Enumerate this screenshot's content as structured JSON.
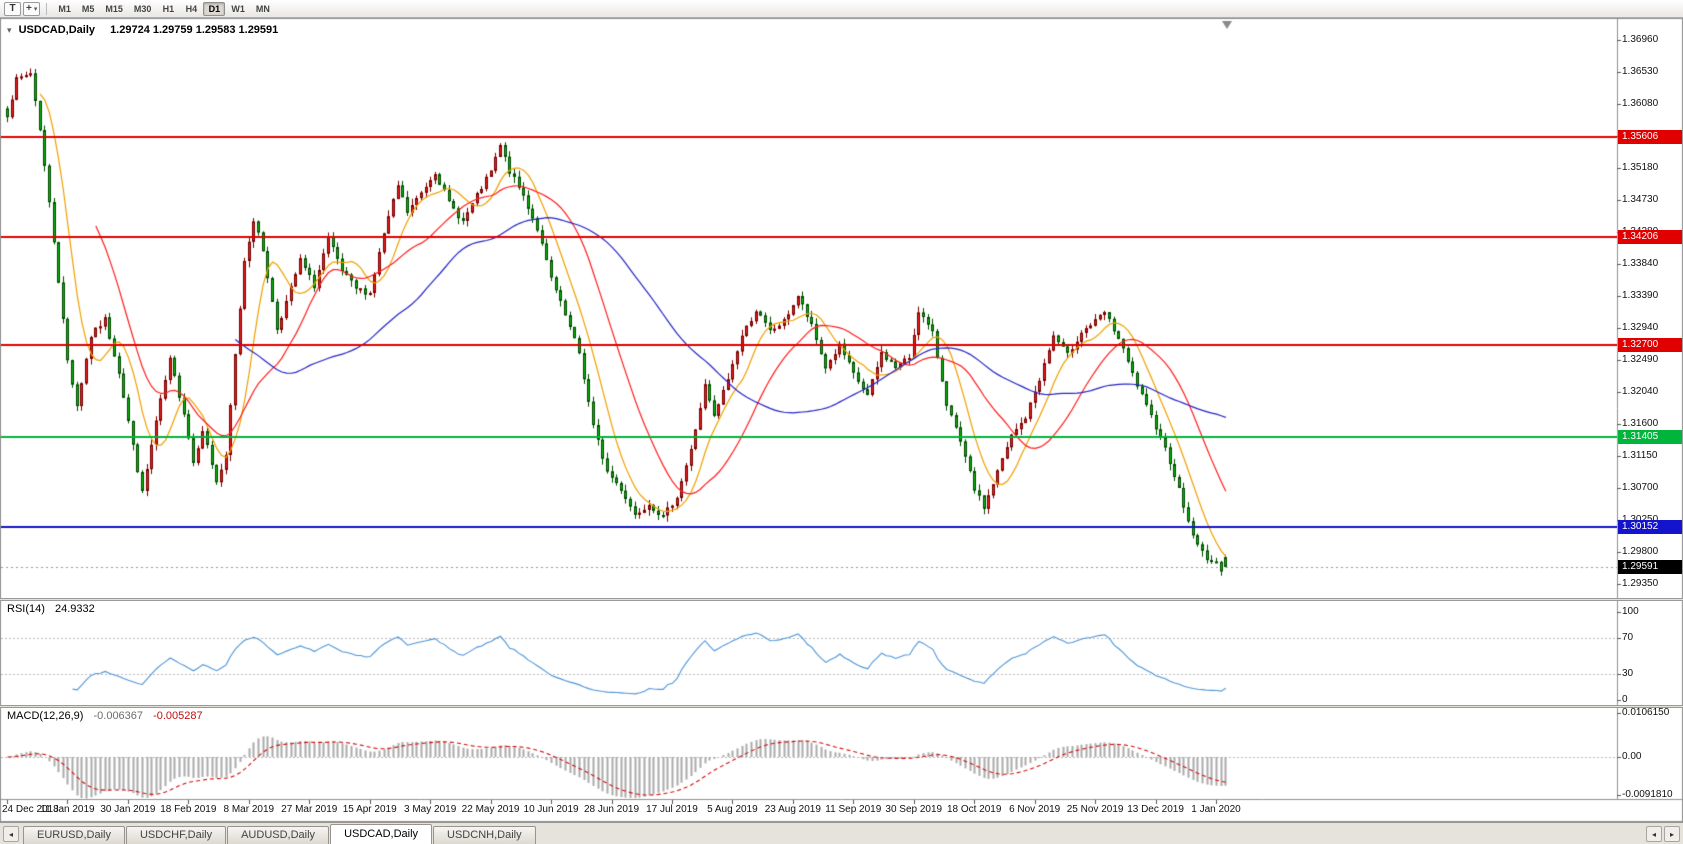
{
  "toolbar": {
    "text_tool_label": "T",
    "timeframes": [
      "M1",
      "M5",
      "M15",
      "M30",
      "H1",
      "H4",
      "D1",
      "W1",
      "MN"
    ],
    "active_timeframe": "D1"
  },
  "icons": {
    "collapse_arrow": "▾",
    "crosshair_tool": "+",
    "dropdown_caret": "▾",
    "tab_scroll_left": "◂",
    "tab_scroll_right": "▸"
  },
  "window": {
    "title_symbol": "USDCAD,Daily",
    "title_ohlc": "1.29724 1.29759 1.29583 1.29591"
  },
  "chart_data": {
    "type": "candlestick",
    "symbol": "USDCAD",
    "period": "Daily",
    "current_bar": {
      "open": 1.29724,
      "high": 1.29759,
      "low": 1.29583,
      "close": 1.29591
    },
    "bars_total": 263,
    "bars_per_date_label": 13,
    "price_axis_labels": [
      "1.36960",
      "1.36530",
      "1.36080",
      "1.35630",
      "1.35180",
      "1.34730",
      "1.34280",
      "1.33840",
      "1.33390",
      "1.32940",
      "1.32490",
      "1.32040",
      "1.31600",
      "1.31150",
      "1.30700",
      "1.30250",
      "1.29800",
      "1.29350"
    ],
    "date_axis_labels": [
      "24 Dec 2018",
      "11 Jan 2019",
      "30 Jan 2019",
      "18 Feb 2019",
      "8 Mar 2019",
      "27 Mar 2019",
      "15 Apr 2019",
      "3 May 2019",
      "22 May 2019",
      "10 Jun 2019",
      "28 Jun 2019",
      "17 Jul 2019",
      "5 Aug 2019",
      "23 Aug 2019",
      "11 Sep 2019",
      "30 Sep 2019",
      "18 Oct 2019",
      "6 Nov 2019",
      "25 Nov 2019",
      "13 Dec 2019",
      "1 Jan 2020"
    ],
    "horizontal_lines": [
      {
        "price": 1.35606,
        "label": "1.35606",
        "color": "#e00000",
        "role": "resistance"
      },
      {
        "price": 1.34206,
        "label": "1.34206",
        "color": "#e00000",
        "role": "resistance"
      },
      {
        "price": 1.327,
        "label": "1.32700",
        "color": "#e00000",
        "role": "resistance"
      },
      {
        "price": 1.31405,
        "label": "1.31405",
        "color": "#00b43c",
        "role": "support"
      },
      {
        "price": 1.30152,
        "label": "1.30152",
        "color": "#1414cc",
        "role": "support"
      }
    ],
    "current_price_label": "1.29591",
    "candle_colors": {
      "up_fill": "#e62020",
      "up_edge": "#7a0000",
      "down_fill": "#10b010",
      "down_edge": "#004d00"
    },
    "moving_averages": [
      {
        "type": "SMA",
        "period": 8,
        "color": "#f0a000"
      },
      {
        "type": "SMA",
        "period": 20,
        "color": "#ff1e1e"
      },
      {
        "type": "SMA",
        "period": 50,
        "color": "#2626c8"
      }
    ],
    "close_path_anchors": [
      [
        0,
        1.3592
      ],
      [
        2,
        1.364
      ],
      [
        5,
        1.365
      ],
      [
        7,
        1.3572
      ],
      [
        10,
        1.3415
      ],
      [
        13,
        1.3248
      ],
      [
        15,
        1.3185
      ],
      [
        18,
        1.3282
      ],
      [
        21,
        1.3305
      ],
      [
        24,
        1.3232
      ],
      [
        27,
        1.3128
      ],
      [
        29,
        1.3062
      ],
      [
        32,
        1.3162
      ],
      [
        35,
        1.3248
      ],
      [
        38,
        1.3175
      ],
      [
        40,
        1.3105
      ],
      [
        42,
        1.3152
      ],
      [
        45,
        1.3078
      ],
      [
        47,
        1.3112
      ],
      [
        49,
        1.3255
      ],
      [
        51,
        1.3388
      ],
      [
        53,
        1.3445
      ],
      [
        55,
        1.3402
      ],
      [
        58,
        1.3292
      ],
      [
        61,
        1.3348
      ],
      [
        63,
        1.3388
      ],
      [
        66,
        1.3352
      ],
      [
        69,
        1.3418
      ],
      [
        72,
        1.3372
      ],
      [
        75,
        1.3348
      ],
      [
        78,
        1.3342
      ],
      [
        81,
        1.3425
      ],
      [
        84,
        1.3492
      ],
      [
        86,
        1.3455
      ],
      [
        89,
        1.3482
      ],
      [
        92,
        1.3512
      ],
      [
        95,
        1.3468
      ],
      [
        98,
        1.3442
      ],
      [
        101,
        1.3478
      ],
      [
        104,
        1.3512
      ],
      [
        106,
        1.3548
      ],
      [
        108,
        1.3512
      ],
      [
        111,
        1.3478
      ],
      [
        114,
        1.3432
      ],
      [
        117,
        1.3362
      ],
      [
        120,
        1.331
      ],
      [
        123,
        1.3258
      ],
      [
        126,
        1.3155
      ],
      [
        129,
        1.3092
      ],
      [
        132,
        1.3068
      ],
      [
        135,
        1.3032
      ],
      [
        138,
        1.3048
      ],
      [
        141,
        1.3028
      ],
      [
        144,
        1.3058
      ],
      [
        147,
        1.3122
      ],
      [
        150,
        1.3212
      ],
      [
        152,
        1.3168
      ],
      [
        155,
        1.3222
      ],
      [
        158,
        1.3282
      ],
      [
        161,
        1.3318
      ],
      [
        164,
        1.3288
      ],
      [
        167,
        1.3302
      ],
      [
        170,
        1.3338
      ],
      [
        173,
        1.3295
      ],
      [
        176,
        1.3238
      ],
      [
        179,
        1.3268
      ],
      [
        182,
        1.3228
      ],
      [
        185,
        1.3198
      ],
      [
        188,
        1.3258
      ],
      [
        191,
        1.3238
      ],
      [
        194,
        1.3252
      ],
      [
        196,
        1.3318
      ],
      [
        199,
        1.3285
      ],
      [
        202,
        1.3188
      ],
      [
        205,
        1.3132
      ],
      [
        208,
        1.3068
      ],
      [
        210,
        1.3042
      ],
      [
        213,
        1.3092
      ],
      [
        216,
        1.3142
      ],
      [
        219,
        1.3168
      ],
      [
        222,
        1.3222
      ],
      [
        225,
        1.3282
      ],
      [
        228,
        1.3255
      ],
      [
        231,
        1.3288
      ],
      [
        234,
        1.3302
      ],
      [
        236,
        1.3315
      ],
      [
        239,
        1.3278
      ],
      [
        242,
        1.3228
      ],
      [
        245,
        1.3182
      ],
      [
        248,
        1.3142
      ],
      [
        251,
        1.3088
      ],
      [
        254,
        1.3022
      ],
      [
        256,
        1.2988
      ],
      [
        258,
        1.2972
      ],
      [
        260,
        1.2962
      ],
      [
        261,
        1.2956
      ],
      [
        262,
        1.29591
      ]
    ],
    "indicators": {
      "rsi": {
        "name": "RSI(14)",
        "period": 14,
        "current_value": "24.9332",
        "levels": [
          70,
          30
        ],
        "axis_labels": [
          "100",
          "70",
          "30",
          "0"
        ],
        "line_color": "#4f96d8"
      },
      "macd": {
        "name": "MACD(12,26,9)",
        "fast": 12,
        "slow": 26,
        "signal": 9,
        "current_main": "-0.006367",
        "current_signal": "-0.005287",
        "axis_labels": [
          "0.0106150",
          "0.00",
          "-0.0091810"
        ],
        "histogram_color": "#ababab",
        "signal_color": "#d01010"
      }
    }
  },
  "tabs": {
    "items": [
      "EURUSD,Daily",
      "USDCHF,Daily",
      "AUDUSD,Daily",
      "USDCAD,Daily",
      "USDCNH,Daily"
    ],
    "active": "USDCAD,Daily"
  }
}
